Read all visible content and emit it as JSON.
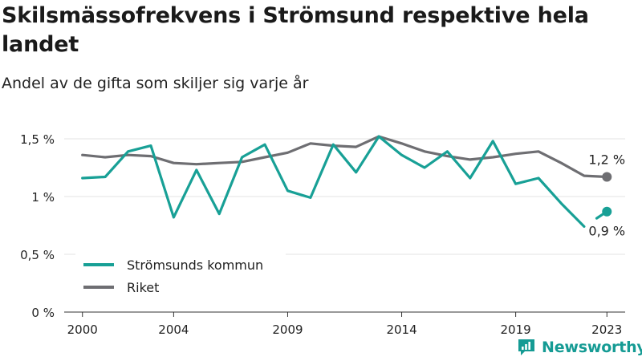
{
  "header": {
    "title": "Skilsmässofrekvens i Strömsund respektive hela landet",
    "subtitle": "Andel av de gifta som skiljer sig varje år"
  },
  "brand": {
    "logo_text": "Newsworthy"
  },
  "colors": {
    "stromsund": "#18a096",
    "riket": "#6e6e72",
    "grid": "#e3e3e3",
    "axis": "#333333"
  },
  "chart_data": {
    "type": "line",
    "title": "Skilsmässofrekvens i Strömsund respektive hela landet",
    "subtitle": "Andel av de gifta som skiljer sig varje år",
    "x_ticks": [
      2000,
      2004,
      2009,
      2014,
      2019,
      2023
    ],
    "y_ticks": [
      0,
      0.5,
      1,
      1.5
    ],
    "y_tick_labels": [
      "0 %",
      "0,5 %",
      "1 %",
      "1,5 %"
    ],
    "xlim": [
      1999.2,
      2023.8
    ],
    "ylim": [
      0,
      1.5
    ],
    "grid": true,
    "legend": "bottom-left",
    "series": [
      {
        "name": "Strömsunds kommun",
        "color": "#18a096",
        "x": [
          2000,
          2001,
          2002,
          2003,
          2004,
          2005,
          2006,
          2007,
          2008,
          2009,
          2010,
          2011,
          2012,
          2013,
          2014,
          2015,
          2016,
          2017,
          2018,
          2019,
          2020,
          2021,
          2022,
          2023
        ],
        "values": [
          1.16,
          1.17,
          1.39,
          1.44,
          0.82,
          1.23,
          0.85,
          1.34,
          1.45,
          1.05,
          0.99,
          1.45,
          1.21,
          1.52,
          1.36,
          1.25,
          1.39,
          1.16,
          1.48,
          1.11,
          1.16,
          0.94,
          0.74,
          0.87
        ],
        "gap_before_last": true,
        "end_label": "0,9 %"
      },
      {
        "name": "Riket",
        "color": "#6e6e72",
        "x": [
          2000,
          2001,
          2002,
          2003,
          2004,
          2005,
          2006,
          2007,
          2008,
          2009,
          2010,
          2011,
          2012,
          2013,
          2014,
          2015,
          2016,
          2017,
          2018,
          2019,
          2020,
          2021,
          2022,
          2023
        ],
        "values": [
          1.36,
          1.34,
          1.36,
          1.35,
          1.29,
          1.28,
          1.29,
          1.3,
          1.34,
          1.38,
          1.46,
          1.44,
          1.43,
          1.52,
          1.46,
          1.39,
          1.35,
          1.32,
          1.34,
          1.37,
          1.39,
          1.29,
          1.18,
          1.17
        ],
        "end_label": "1,2 %"
      }
    ]
  }
}
